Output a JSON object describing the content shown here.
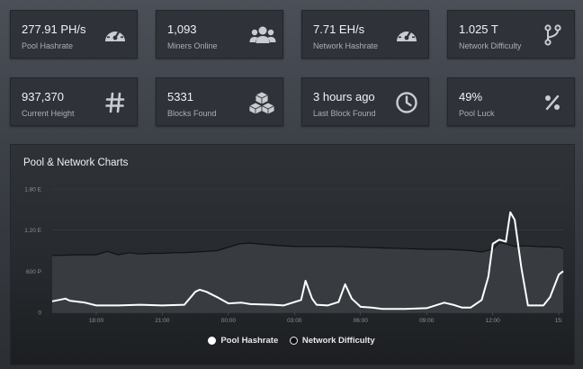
{
  "stats": [
    {
      "value": "277.91 PH/s",
      "label": "Pool Hashrate",
      "icon": "gauge-icon"
    },
    {
      "value": "1,093",
      "label": "Miners Online",
      "icon": "users-icon"
    },
    {
      "value": "7.71 EH/s",
      "label": "Network Hashrate",
      "icon": "gauge-icon"
    },
    {
      "value": "1.025 T",
      "label": "Network Difficulty",
      "icon": "branch-icon"
    },
    {
      "value": "937,370",
      "label": "Current Height",
      "icon": "hash-icon"
    },
    {
      "value": "5331",
      "label": "Blocks Found",
      "icon": "cubes-icon"
    },
    {
      "value": "3 hours ago",
      "label": "Last Block Found",
      "icon": "clock-icon"
    },
    {
      "value": "49%",
      "label": "Pool Luck",
      "icon": "percent-icon"
    }
  ],
  "panel": {
    "title": "Pool & Network Charts"
  },
  "colors": {
    "pool": "#ffffff",
    "network": "#111111",
    "networkFill": "#3c3f44"
  },
  "chart_data": {
    "type": "line",
    "title": "Pool & Network Charts",
    "y_tick_labels": [
      "0",
      "600 P",
      "1.20 E",
      "1.80 E"
    ],
    "ylim": [
      0,
      1.8
    ],
    "x_tick_labels": [
      "18:00",
      "21:00",
      "00:00",
      "03:00",
      "06:00",
      "09:00",
      "12:00",
      "15:"
    ],
    "x_tick_hours": [
      2,
      5,
      8,
      11,
      14,
      17,
      20,
      23
    ],
    "xlim": [
      0,
      23.2
    ],
    "legend_position": "bottom",
    "series": [
      {
        "name": "Pool Hashrate",
        "x": [
          0,
          0.6,
          0.8,
          1.5,
          2,
          3,
          4,
          5,
          6,
          6.5,
          6.7,
          7,
          7.5,
          8,
          8.6,
          9,
          10,
          10.5,
          11.3,
          11.5,
          11.8,
          12,
          12.5,
          13,
          13.3,
          13.6,
          14,
          14.5,
          15,
          16,
          17,
          17.8,
          18.2,
          18.6,
          19,
          19.5,
          19.8,
          20,
          20.3,
          20.6,
          20.8,
          21,
          21.3,
          21.6,
          22,
          22.3,
          22.6,
          23,
          23.2
        ],
        "values": [
          0.16,
          0.2,
          0.17,
          0.14,
          0.1,
          0.1,
          0.11,
          0.1,
          0.11,
          0.3,
          0.33,
          0.3,
          0.22,
          0.13,
          0.14,
          0.12,
          0.11,
          0.1,
          0.18,
          0.46,
          0.2,
          0.11,
          0.1,
          0.15,
          0.41,
          0.2,
          0.08,
          0.07,
          0.05,
          0.05,
          0.06,
          0.14,
          0.11,
          0.07,
          0.07,
          0.18,
          0.52,
          1.0,
          1.06,
          1.03,
          1.46,
          1.35,
          0.65,
          0.1,
          0.1,
          0.1,
          0.22,
          0.55,
          0.6
        ]
      },
      {
        "name": "Network Difficulty",
        "x": [
          0,
          0.3,
          1,
          2,
          2.5,
          3,
          3.5,
          4,
          4.5,
          5,
          5.5,
          6,
          6.5,
          7,
          7.5,
          8,
          8.5,
          9,
          10,
          11,
          12,
          13,
          14,
          15,
          16,
          17,
          18,
          19,
          19.5,
          20,
          20.3,
          20.6,
          21,
          21.5,
          22,
          23,
          23.2
        ],
        "values": [
          0.83,
          0.83,
          0.84,
          0.84,
          0.89,
          0.84,
          0.87,
          0.85,
          0.86,
          0.86,
          0.87,
          0.87,
          0.88,
          0.89,
          0.9,
          0.95,
          1.0,
          1.01,
          0.98,
          0.96,
          0.96,
          0.96,
          0.95,
          0.94,
          0.93,
          0.92,
          0.92,
          0.9,
          0.88,
          0.92,
          1.02,
          1.0,
          0.96,
          0.97,
          0.96,
          0.95,
          0.93
        ]
      }
    ]
  }
}
